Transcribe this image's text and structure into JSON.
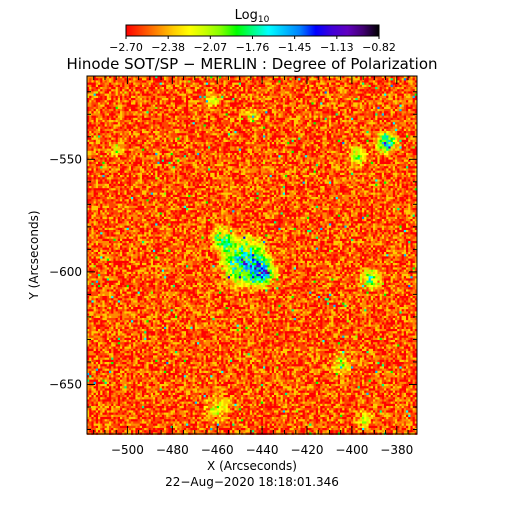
{
  "colorbar": {
    "label_main": "Log",
    "label_sub": "10",
    "ticks": [
      "−2.70",
      "−2.38",
      "−2.07",
      "−1.76",
      "−1.45",
      "−1.13",
      "−0.82"
    ],
    "colors": [
      "#ff0000",
      "#ff4400",
      "#ff8800",
      "#ffcc00",
      "#ffff00",
      "#c8ff00",
      "#80ff00",
      "#00ff00",
      "#00ff80",
      "#00ffff",
      "#00c0ff",
      "#0080ff",
      "#0000ff",
      "#4000d8",
      "#6000c0",
      "#400070",
      "#000000"
    ]
  },
  "chart_data": {
    "type": "heatmap",
    "title": "Hinode SOT/SP − MERLIN : Degree of Polarization",
    "xlabel": "X (Arcseconds)",
    "ylabel": "Y (Arcseconds)",
    "xlim": [
      -518,
      -371
    ],
    "ylim": [
      -672,
      -513
    ],
    "x_ticks": [
      -500,
      -480,
      -460,
      -440,
      -420,
      -400,
      -380
    ],
    "x_tick_labels": [
      "−500",
      "−480",
      "−460",
      "−440",
      "−420",
      "−400",
      "−380"
    ],
    "y_ticks": [
      -550,
      -600,
      -650
    ],
    "y_tick_labels": [
      "−550",
      "−600",
      "−650"
    ],
    "value_range": [
      -2.7,
      -0.82
    ],
    "value_label": "Log10",
    "timestamp": "22−Aug−2020 18:18:01.346"
  }
}
